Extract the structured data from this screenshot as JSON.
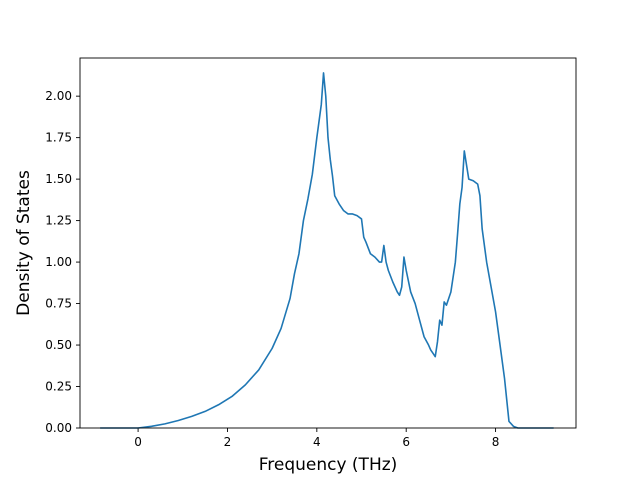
{
  "chart_data": {
    "type": "line",
    "title": "",
    "xlabel": "Frequency (THz)",
    "ylabel": "Density of States",
    "xlim": [
      -1.3,
      9.8
    ],
    "ylim": [
      0.0,
      2.23
    ],
    "xticks": [
      0,
      2,
      4,
      6,
      8
    ],
    "xtick_labels": [
      "0",
      "2",
      "4",
      "6",
      "8"
    ],
    "yticks": [
      0.0,
      0.25,
      0.5,
      0.75,
      1.0,
      1.25,
      1.5,
      1.75,
      2.0
    ],
    "ytick_labels": [
      "0.00",
      "0.25",
      "0.50",
      "0.75",
      "1.00",
      "1.25",
      "1.50",
      "1.75",
      "2.00"
    ],
    "grid": false,
    "legend": "none",
    "colors": {
      "line": "#1f77b4",
      "axes": "#000000",
      "background": "#ffffff"
    },
    "series": [
      {
        "x": [
          -0.85,
          -0.5,
          0.0,
          0.3,
          0.6,
          0.9,
          1.2,
          1.5,
          1.8,
          2.1,
          2.4,
          2.7,
          3.0,
          3.2,
          3.4,
          3.5,
          3.6,
          3.7,
          3.8,
          3.9,
          4.0,
          4.1,
          4.15,
          4.2,
          4.25,
          4.3,
          4.35,
          4.4,
          4.5,
          4.6,
          4.7,
          4.8,
          4.9,
          5.0,
          5.05,
          5.1,
          5.2,
          5.3,
          5.4,
          5.45,
          5.5,
          5.55,
          5.6,
          5.7,
          5.8,
          5.85,
          5.9,
          5.95,
          6.0,
          6.1,
          6.2,
          6.3,
          6.4,
          6.5,
          6.55,
          6.6,
          6.65,
          6.7,
          6.75,
          6.8,
          6.85,
          6.9,
          7.0,
          7.1,
          7.15,
          7.2,
          7.25,
          7.3,
          7.4,
          7.5,
          7.6,
          7.65,
          7.7,
          7.8,
          7.9,
          8.0,
          8.1,
          8.2,
          8.3,
          8.4,
          8.5,
          9.3
        ],
        "y": [
          0.0,
          0.0,
          0.0,
          0.01,
          0.025,
          0.045,
          0.07,
          0.1,
          0.14,
          0.19,
          0.26,
          0.35,
          0.48,
          0.6,
          0.78,
          0.93,
          1.05,
          1.25,
          1.38,
          1.53,
          1.75,
          1.95,
          2.14,
          2.0,
          1.75,
          1.62,
          1.52,
          1.4,
          1.35,
          1.31,
          1.29,
          1.29,
          1.28,
          1.26,
          1.15,
          1.12,
          1.05,
          1.03,
          1.0,
          1.0,
          1.1,
          1.0,
          0.95,
          0.88,
          0.82,
          0.8,
          0.85,
          1.03,
          0.95,
          0.82,
          0.75,
          0.65,
          0.55,
          0.5,
          0.47,
          0.45,
          0.43,
          0.52,
          0.65,
          0.62,
          0.76,
          0.74,
          0.82,
          1.0,
          1.17,
          1.35,
          1.45,
          1.67,
          1.5,
          1.49,
          1.47,
          1.4,
          1.2,
          1.0,
          0.85,
          0.7,
          0.5,
          0.3,
          0.04,
          0.01,
          0.0,
          0.0
        ]
      }
    ]
  }
}
